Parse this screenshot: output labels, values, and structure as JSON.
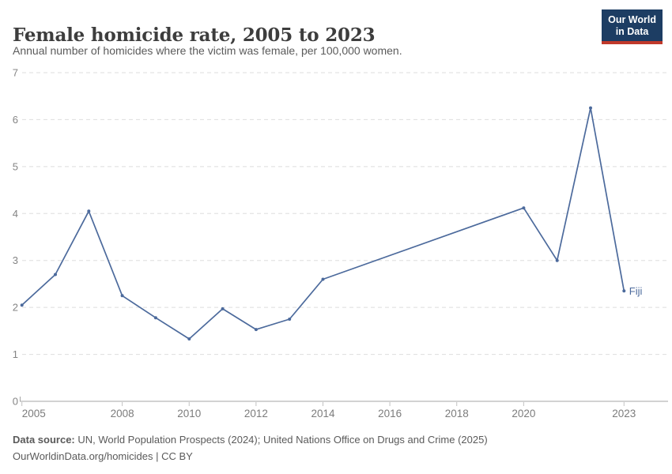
{
  "header": {
    "title": "Female homicide rate, 2005 to 2023",
    "subtitle": "Annual number of homicides where the victim was female, per 100,000 women."
  },
  "logo": {
    "line1": "Our World",
    "line2": "in Data",
    "bg_color": "#1d3d63",
    "bar_color": "#c0392b"
  },
  "chart_data": {
    "type": "line",
    "title": "Female homicide rate, 2005 to 2023",
    "xlabel": "",
    "ylabel": "",
    "xlim": [
      2005,
      2024.3
    ],
    "ylim": [
      0,
      7
    ],
    "grid": "horizontal-dashed",
    "legend_position": "end-of-line-label",
    "x_ticks": [
      2005,
      2008,
      2010,
      2012,
      2014,
      2016,
      2018,
      2020,
      2023
    ],
    "y_ticks": [
      0,
      1,
      2,
      3,
      4,
      5,
      6,
      7
    ],
    "series": [
      {
        "name": "Fiji",
        "color": "#4C6A9C",
        "points": [
          [
            2005,
            2.05
          ],
          [
            2006,
            2.7
          ],
          [
            2007,
            4.05
          ],
          [
            2008,
            2.25
          ],
          [
            2009,
            1.78
          ],
          [
            2010,
            1.33
          ],
          [
            2011,
            1.97
          ],
          [
            2012,
            1.53
          ],
          [
            2013,
            1.75
          ],
          [
            2014,
            2.6
          ],
          [
            2020,
            4.12
          ],
          [
            2021,
            3.0
          ],
          [
            2022,
            6.25
          ],
          [
            2023,
            2.35
          ]
        ],
        "note": "no data between 2014 and 2020; line connects 2014 directly to 2020"
      }
    ],
    "colors": {
      "gridline": "#dedede",
      "axis": "#a6a6a6",
      "tick": "#c2c2c2",
      "y_tick_label": "#848484",
      "x_tick_label": "#7c7c7c"
    }
  },
  "footer": {
    "source_label": "Data source:",
    "source_text": " UN, World Population Prospects (2024); United Nations Office on Drugs and Crime (2025)",
    "license_line": "OurWorldinData.org/homicides | CC BY"
  }
}
